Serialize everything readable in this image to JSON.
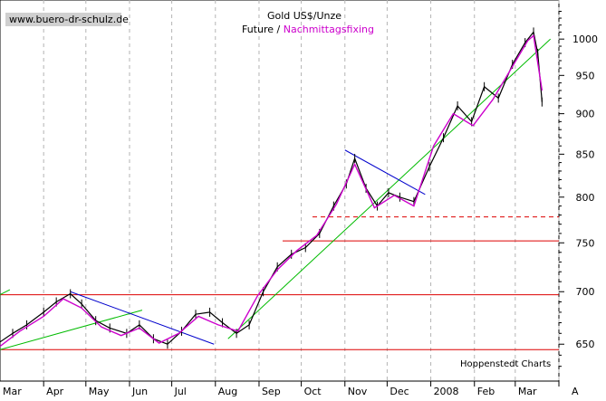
{
  "watermark": "www.buero-dr-schulz.de",
  "credit": "Hoppenstedt Charts",
  "chart_data": {
    "type": "line",
    "title": "Gold US$/Unze",
    "subtitle_future": "Future / ",
    "subtitle_fixing": "Nachmittagsfixing",
    "y_axis_position": "right",
    "y_scale": "log",
    "ylim": [
      617,
      1050
    ],
    "y_ticks": [
      650,
      700,
      750,
      800,
      850,
      900,
      950,
      1000
    ],
    "x_tick_labels": [
      "Mar",
      "Apr",
      "May",
      "Jun",
      "Jul",
      "Aug",
      "Sep",
      "Oct",
      "Nov",
      "Dec",
      "2008",
      "Feb",
      "Mar",
      "A"
    ],
    "grid": "vertical dashed",
    "colors": {
      "future": "#000000",
      "fixing": "#cc00cc",
      "support_resistance": "#dd0000",
      "uptrend": "#00bb00",
      "downtrend": "#0000cc"
    },
    "series": [
      {
        "name": "Future",
        "x": [
          "2007-03-01",
          "2007-03-10",
          "2007-03-20",
          "2007-04-01",
          "2007-04-10",
          "2007-04-20",
          "2007-04-28",
          "2007-05-08",
          "2007-05-18",
          "2007-05-30",
          "2007-06-08",
          "2007-06-18",
          "2007-06-28",
          "2007-07-08",
          "2007-07-18",
          "2007-07-28",
          "2007-08-06",
          "2007-08-16",
          "2007-08-25",
          "2007-09-04",
          "2007-09-14",
          "2007-09-24",
          "2007-10-04",
          "2007-10-14",
          "2007-10-24",
          "2007-11-02",
          "2007-11-08",
          "2007-11-16",
          "2007-11-24",
          "2007-12-02",
          "2007-12-10",
          "2007-12-20",
          "2007-12-31",
          "2008-01-10",
          "2008-01-20",
          "2008-01-30",
          "2008-02-08",
          "2008-02-18",
          "2008-02-28",
          "2008-03-08",
          "2008-03-14",
          "2008-03-17",
          "2008-03-20"
        ],
        "values": [
          652,
          660,
          668,
          680,
          690,
          698,
          688,
          672,
          665,
          660,
          668,
          655,
          650,
          662,
          678,
          680,
          670,
          660,
          668,
          700,
          725,
          738,
          745,
          760,
          790,
          815,
          845,
          810,
          790,
          805,
          800,
          795,
          835,
          870,
          910,
          890,
          935,
          920,
          965,
          995,
          1010,
          980,
          915
        ]
      },
      {
        "name": "Nachmittagsfixing",
        "x": [
          "2007-03-01",
          "2007-03-15",
          "2007-04-01",
          "2007-04-15",
          "2007-04-28",
          "2007-05-12",
          "2007-05-26",
          "2007-06-08",
          "2007-06-22",
          "2007-07-06",
          "2007-07-20",
          "2007-08-03",
          "2007-08-17",
          "2007-08-31",
          "2007-09-14",
          "2007-09-28",
          "2007-10-12",
          "2007-10-26",
          "2007-11-08",
          "2007-11-22",
          "2007-12-06",
          "2007-12-20",
          "2008-01-03",
          "2008-01-17",
          "2008-01-31",
          "2008-02-14",
          "2008-02-28",
          "2008-03-10",
          "2008-03-14",
          "2008-03-20"
        ],
        "values": [
          648,
          662,
          676,
          693,
          684,
          666,
          658,
          665,
          651,
          660,
          676,
          668,
          662,
          696,
          722,
          742,
          758,
          792,
          838,
          788,
          802,
          790,
          860,
          900,
          885,
          918,
          962,
          998,
          1005,
          930
        ]
      }
    ],
    "horizontal_lines": [
      {
        "value": 645,
        "style": "solid"
      },
      {
        "value": 697,
        "style": "solid"
      },
      {
        "value": 752,
        "style": "solid"
      },
      {
        "value": 778,
        "style": "dashed"
      }
    ],
    "trendlines": [
      {
        "color": "green",
        "from": [
          "2007-03-01",
          645
        ],
        "to": [
          "2007-06-10",
          682
        ]
      },
      {
        "color": "green",
        "from": [
          "2007-03-01",
          697
        ],
        "to": [
          "2007-03-08",
          702
        ]
      },
      {
        "color": "green",
        "from": [
          "2007-08-10",
          655
        ],
        "to": [
          "2008-03-26",
          1000
        ]
      },
      {
        "color": "blue",
        "from": [
          "2007-04-20",
          700
        ],
        "to": [
          "2007-07-31",
          650
        ]
      },
      {
        "color": "blue",
        "from": [
          "2007-11-01",
          855
        ],
        "to": [
          "2007-12-28",
          803
        ]
      }
    ]
  }
}
